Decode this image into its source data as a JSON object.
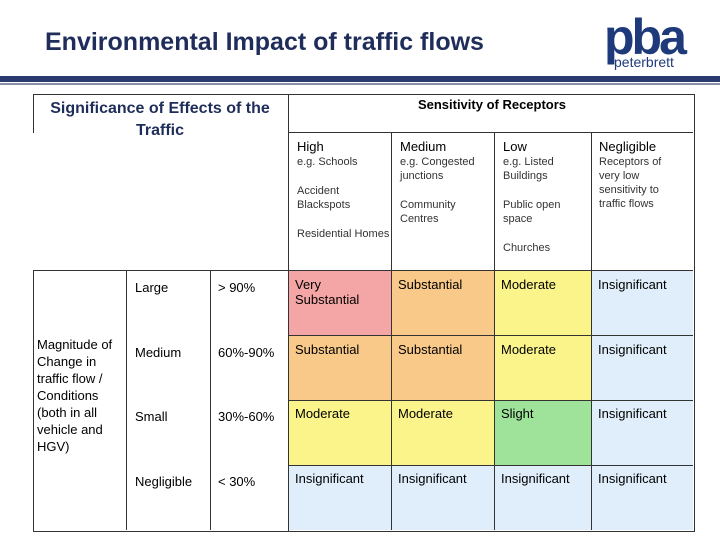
{
  "slide": {
    "title": "Environmental Impact of traffic flows",
    "logo": {
      "main": "pba",
      "sub": "peterbrett"
    }
  },
  "table": {
    "significance_title": "Significance of Effects of the Traffic",
    "sensitivity_title": "Sensitivity of Receptors",
    "magnitude_label": "Magnitude of Change in traffic flow / Conditions (both in all vehicle and HGV)",
    "columns": [
      {
        "label": "High",
        "examples": [
          "e.g. Schools",
          "Accident Blackspots",
          "Residential Homes"
        ]
      },
      {
        "label": "Medium",
        "examples": [
          "e.g. Congested junctions",
          "Community Centres"
        ]
      },
      {
        "label": "Low",
        "examples": [
          "e.g. Listed Buildings",
          "Public open space",
          "Churches"
        ]
      },
      {
        "label": "Negligible",
        "examples": [
          "Receptors of very low sensitivity to traffic flows"
        ]
      }
    ],
    "rows": [
      {
        "magnitude": "Large",
        "range": "> 90%",
        "cells": [
          "Very Substantial",
          "Substantial",
          "Moderate",
          "Insignificant"
        ]
      },
      {
        "magnitude": "Medium",
        "range": "60%-90%",
        "cells": [
          "Substantial",
          "Substantial",
          "Moderate",
          "Insignificant"
        ]
      },
      {
        "magnitude": "Small",
        "range": "30%-60%",
        "cells": [
          "Moderate",
          "Moderate",
          "Slight",
          "Insignificant"
        ]
      },
      {
        "magnitude": "Negligible",
        "range": "< 30%",
        "cells": [
          "Insignificant",
          "Insignificant",
          "Insignificant",
          "Insignificant"
        ]
      }
    ],
    "colors": {
      "very_substantial": "#f4a6a6",
      "substantial": "#f9c98a",
      "moderate": "#fbf48a",
      "slight": "#9fe39a",
      "insignificant": "#dfeefa"
    }
  }
}
